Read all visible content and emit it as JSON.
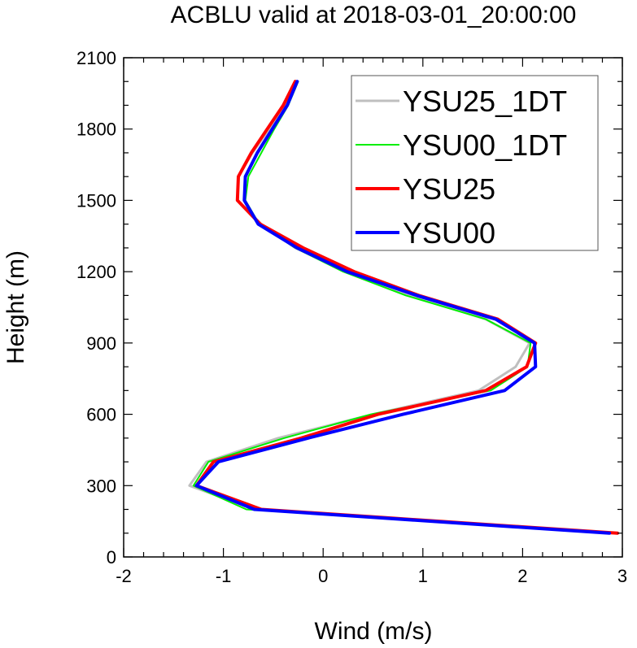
{
  "chart_data": {
    "type": "line",
    "title": "ACBLU valid at 2018-03-01_20:00:00",
    "xlabel": "Wind (m/s)",
    "ylabel": "Height (m)",
    "xlim": [
      -2,
      3
    ],
    "ylim": [
      0,
      2100
    ],
    "xticks": [
      "-2",
      "-1",
      "0",
      "1",
      "2",
      "3"
    ],
    "yticks": [
      "0",
      "300",
      "600",
      "900",
      "1200",
      "1500",
      "1800",
      "2100"
    ],
    "legend_position": "top-right",
    "grid": false,
    "heights": [
      100,
      200,
      300,
      400,
      500,
      600,
      700,
      800,
      900,
      1000,
      1100,
      1200,
      1300,
      1400,
      1500,
      1600,
      1700,
      1800,
      1900,
      2000
    ],
    "series": [
      {
        "name": "YSU25_1DT",
        "color": "#bfbfbf",
        "values": [
          2.87,
          -0.69,
          -1.34,
          -1.17,
          -0.45,
          0.5,
          1.56,
          1.93,
          2.07,
          1.63,
          0.87,
          0.24,
          -0.28,
          -0.62,
          -0.86,
          -0.85,
          -0.71,
          -0.54,
          -0.38,
          -0.26
        ]
      },
      {
        "name": "YSU00_1DT",
        "color": "#00ee00",
        "values": [
          2.87,
          -0.77,
          -1.3,
          -1.15,
          -0.39,
          0.48,
          1.68,
          2.05,
          2.08,
          1.63,
          0.83,
          0.2,
          -0.28,
          -0.64,
          -0.78,
          -0.75,
          -0.62,
          -0.49,
          -0.35,
          -0.25
        ]
      },
      {
        "name": "YSU25",
        "color": "#ff0000",
        "values": [
          2.95,
          -0.62,
          -1.27,
          -1.1,
          -0.22,
          0.55,
          1.63,
          2.04,
          2.13,
          1.75,
          0.96,
          0.31,
          -0.2,
          -0.63,
          -0.86,
          -0.85,
          -0.72,
          -0.56,
          -0.4,
          -0.28
        ]
      },
      {
        "name": "YSU00",
        "color": "#0000ff",
        "values": [
          2.87,
          -0.69,
          -1.27,
          -1.05,
          -0.15,
          0.8,
          1.82,
          2.13,
          2.12,
          1.73,
          0.94,
          0.24,
          -0.26,
          -0.65,
          -0.79,
          -0.78,
          -0.66,
          -0.51,
          -0.36,
          -0.26
        ]
      }
    ]
  }
}
